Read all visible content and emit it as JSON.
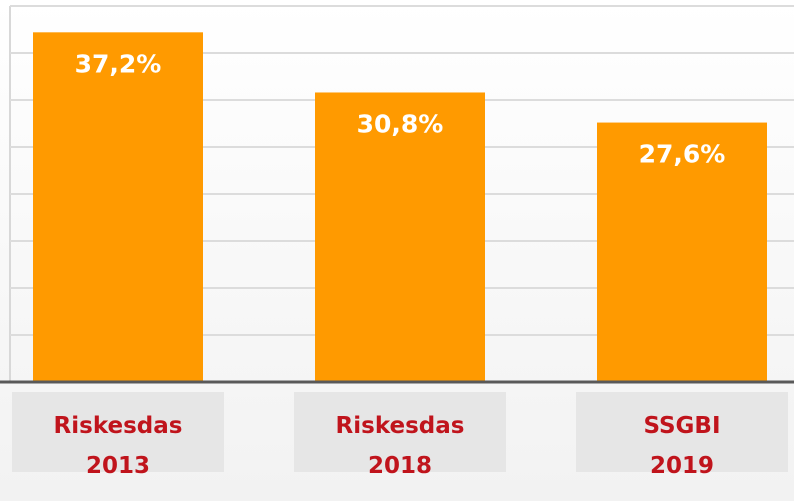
{
  "chart_data": {
    "type": "bar",
    "categories": [
      "Riskesdas 2013",
      "Riskesdas 2018",
      "SSGBI 2019"
    ],
    "values": [
      37.2,
      30.8,
      27.6
    ],
    "value_labels": [
      "37,2%",
      "30,8%",
      "27,6%"
    ],
    "color": "#ff9a00",
    "ylim": [
      0,
      40
    ],
    "yticks": [
      0,
      5,
      10,
      15,
      20,
      25,
      30,
      35,
      40
    ],
    "grid": true
  }
}
